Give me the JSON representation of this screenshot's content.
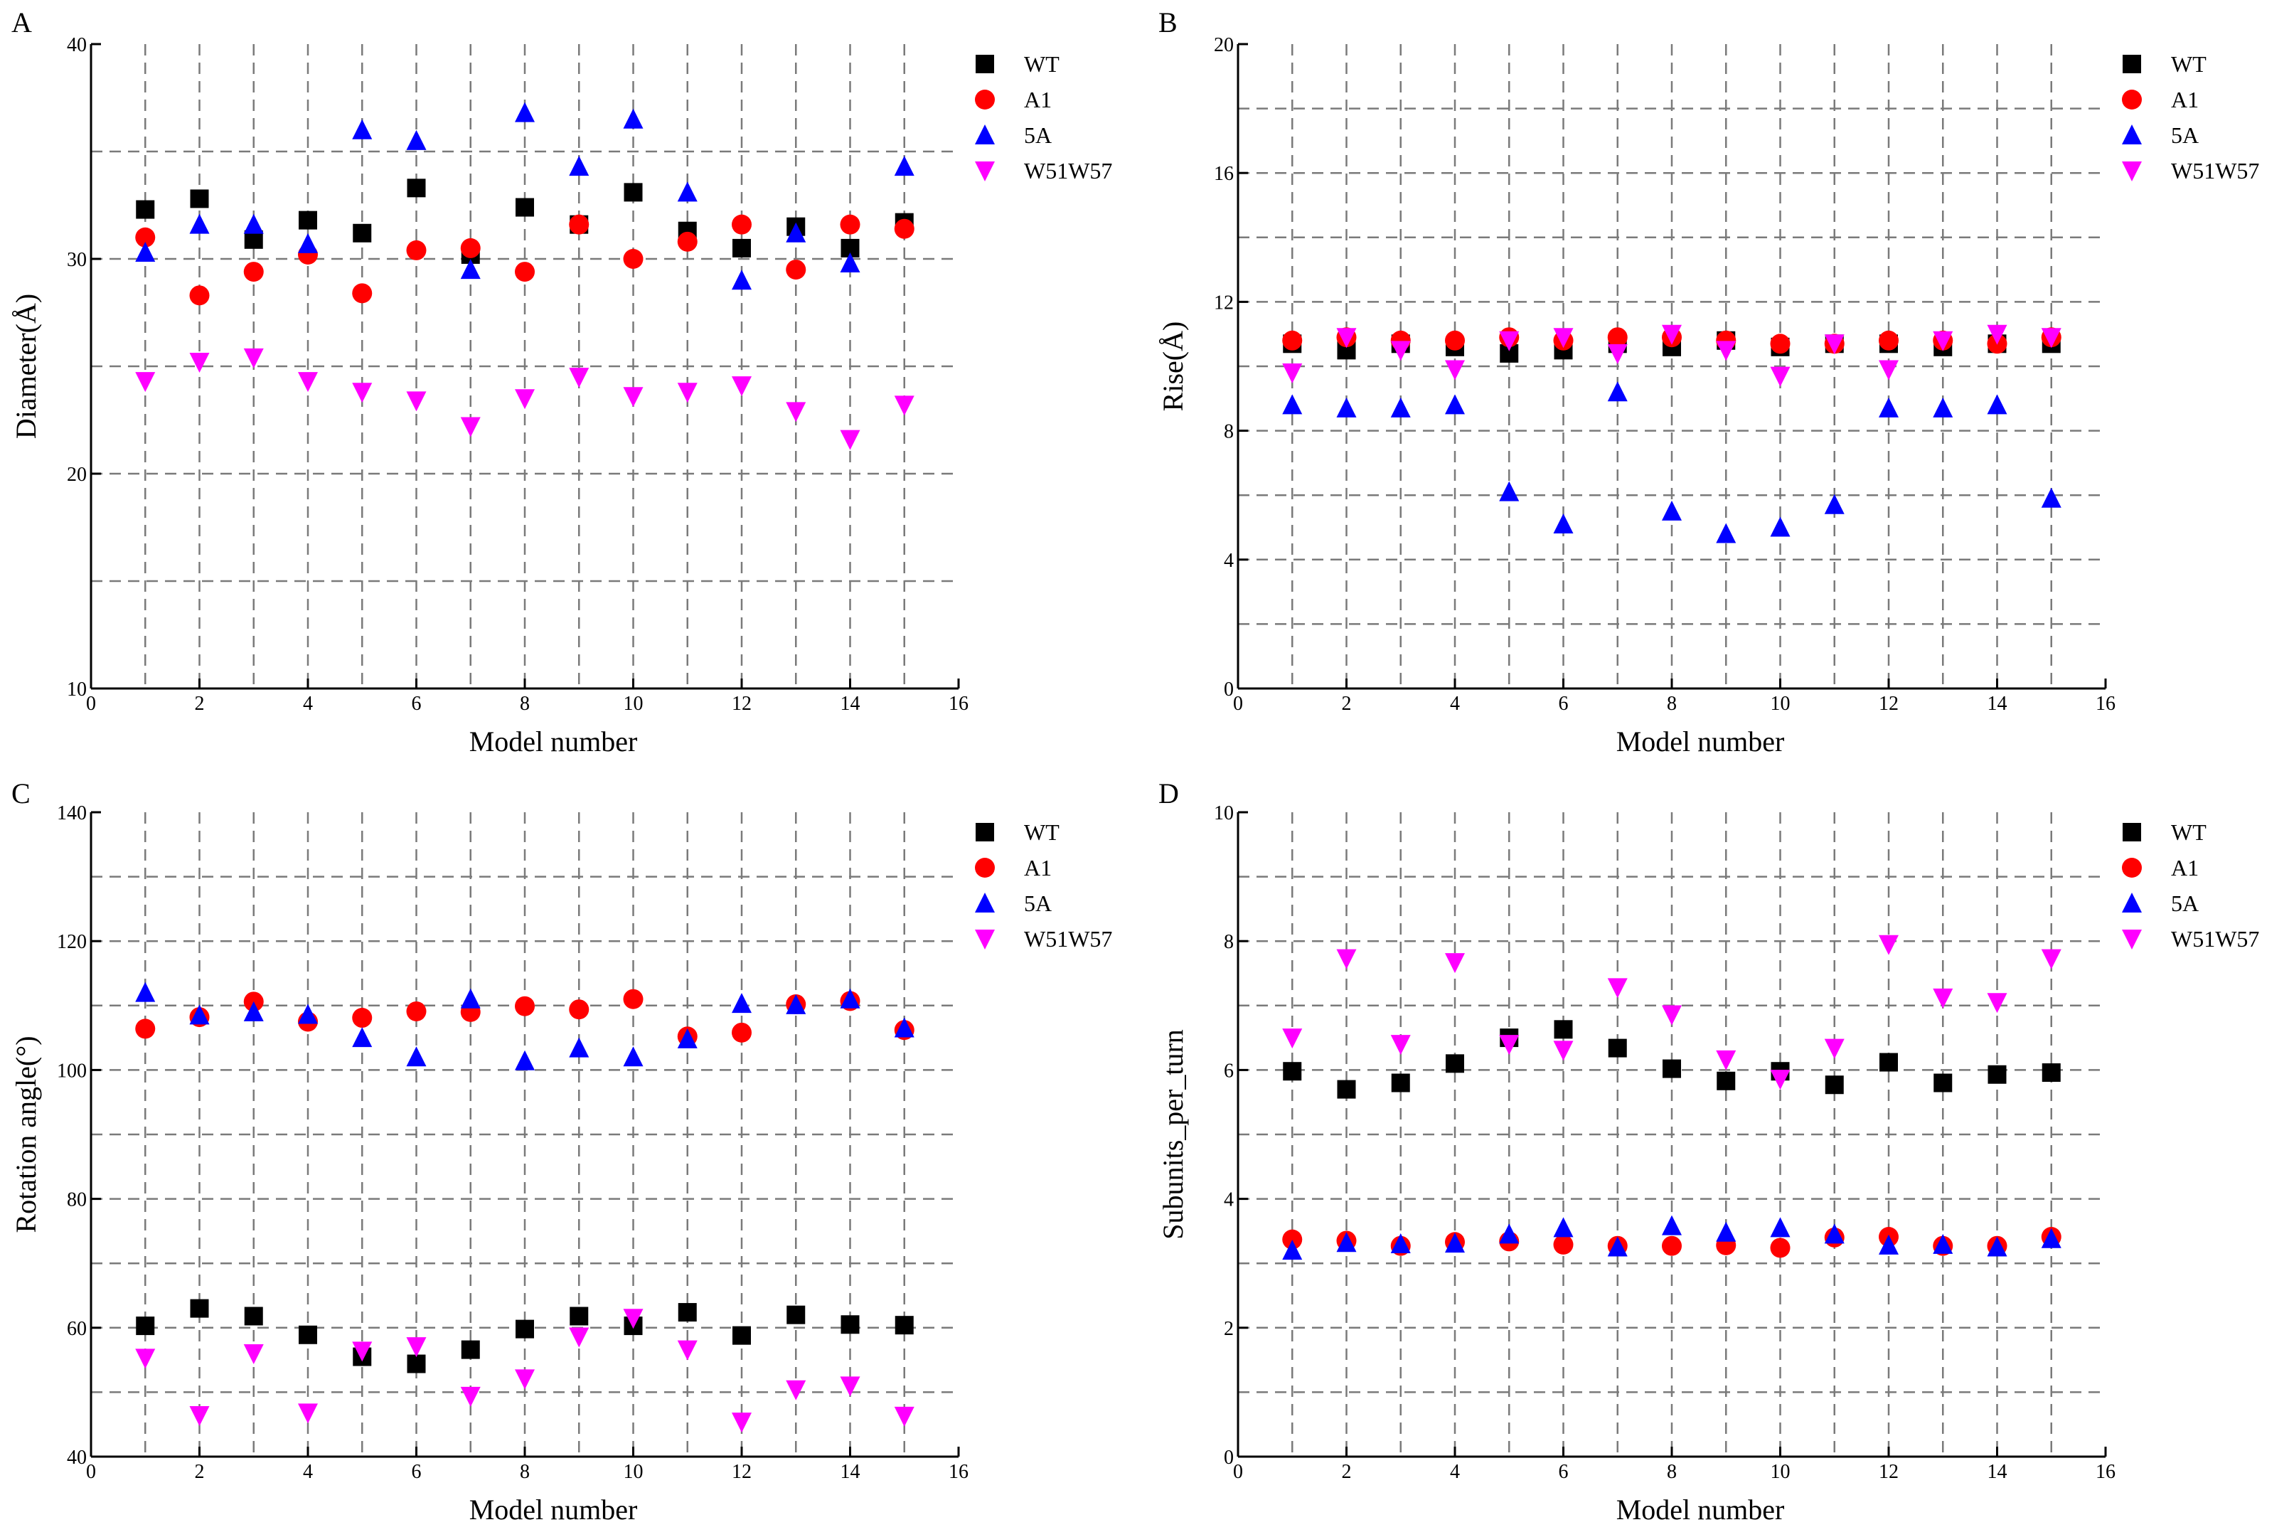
{
  "figure": {
    "legend_labels": [
      "WT",
      "A1",
      "5A",
      "W51W57"
    ],
    "series_styles": [
      {
        "name": "WT",
        "marker": "square",
        "color": "#000000"
      },
      {
        "name": "A1",
        "marker": "circle",
        "color": "#ff0000"
      },
      {
        "name": "5A",
        "marker": "triangle-up",
        "color": "#0000ff"
      },
      {
        "name": "W51W57",
        "marker": "triangle-down",
        "color": "#ff00ff"
      }
    ]
  },
  "chart_data": [
    {
      "panel": "A",
      "type": "scatter",
      "title": "",
      "xlabel": "Model number",
      "ylabel": "Diameter(Å)",
      "xlim": [
        0,
        16
      ],
      "ylim": [
        10,
        40
      ],
      "xticks": [
        0,
        2,
        4,
        6,
        8,
        10,
        12,
        14,
        16
      ],
      "yticks": [
        10,
        20,
        30,
        40
      ],
      "grid": true,
      "legend": "top-right",
      "x": [
        1,
        2,
        3,
        4,
        5,
        6,
        7,
        8,
        9,
        10,
        11,
        12,
        13,
        14,
        15
      ],
      "series": [
        {
          "name": "WT",
          "values": [
            32.3,
            32.8,
            30.9,
            31.8,
            31.2,
            33.3,
            30.2,
            32.4,
            31.6,
            33.1,
            31.3,
            30.5,
            31.5,
            30.5,
            31.7
          ]
        },
        {
          "name": "A1",
          "values": [
            31.0,
            28.3,
            29.4,
            30.2,
            28.4,
            30.4,
            30.5,
            29.4,
            31.6,
            30.0,
            30.8,
            31.6,
            29.5,
            31.6,
            31.4
          ]
        },
        {
          "name": "5A",
          "values": [
            30.3,
            31.6,
            31.6,
            30.7,
            36.0,
            35.5,
            29.5,
            36.8,
            34.3,
            36.5,
            33.1,
            29.0,
            31.2,
            29.8,
            34.3
          ]
        },
        {
          "name": "W51W57",
          "values": [
            24.3,
            25.2,
            25.4,
            24.3,
            23.8,
            23.4,
            22.2,
            23.5,
            24.5,
            23.6,
            23.8,
            24.1,
            22.9,
            21.6,
            23.2
          ]
        }
      ]
    },
    {
      "panel": "B",
      "type": "scatter",
      "title": "",
      "xlabel": "Model number",
      "ylabel": "Rise(Å)",
      "xlim": [
        0,
        16
      ],
      "ylim": [
        0,
        20
      ],
      "xticks": [
        0,
        2,
        4,
        6,
        8,
        10,
        12,
        14,
        16
      ],
      "yticks": [
        0,
        4,
        8,
        12,
        16,
        20
      ],
      "grid": true,
      "legend": "top-right",
      "x": [
        1,
        2,
        3,
        4,
        5,
        6,
        7,
        8,
        9,
        10,
        11,
        12,
        13,
        14,
        15
      ],
      "series": [
        {
          "name": "WT",
          "values": [
            10.7,
            10.5,
            10.7,
            10.6,
            10.4,
            10.5,
            10.7,
            10.6,
            10.8,
            10.6,
            10.7,
            10.7,
            10.6,
            10.7,
            10.7
          ]
        },
        {
          "name": "A1",
          "values": [
            10.8,
            10.9,
            10.8,
            10.8,
            10.9,
            10.8,
            10.9,
            10.9,
            10.8,
            10.7,
            10.7,
            10.8,
            10.8,
            10.7,
            10.9
          ]
        },
        {
          "name": "5A",
          "values": [
            8.8,
            8.7,
            8.7,
            8.8,
            6.1,
            5.1,
            9.2,
            5.5,
            4.8,
            5.0,
            5.7,
            8.7,
            8.7,
            8.8,
            5.9
          ]
        },
        {
          "name": "W51W57",
          "values": [
            9.8,
            10.9,
            10.5,
            9.9,
            10.8,
            10.9,
            10.4,
            11.0,
            10.5,
            9.7,
            10.7,
            9.9,
            10.8,
            11.0,
            10.9
          ]
        }
      ]
    },
    {
      "panel": "C",
      "type": "scatter",
      "title": "",
      "xlabel": "Model number",
      "ylabel": "Rotation angle(°)",
      "xlim": [
        0,
        16
      ],
      "ylim": [
        40,
        140
      ],
      "xticks": [
        0,
        2,
        4,
        6,
        8,
        10,
        12,
        14,
        16
      ],
      "yticks": [
        40,
        60,
        80,
        100,
        120,
        140
      ],
      "grid": true,
      "legend": "top-right",
      "x": [
        1,
        2,
        3,
        4,
        5,
        6,
        7,
        8,
        9,
        10,
        11,
        12,
        13,
        14,
        15
      ],
      "series": [
        {
          "name": "WT",
          "values": [
            60.3,
            63.0,
            61.8,
            58.9,
            55.5,
            54.4,
            56.6,
            59.8,
            61.8,
            60.3,
            62.4,
            58.8,
            62.0,
            60.5,
            60.4
          ]
        },
        {
          "name": "A1",
          "values": [
            106.4,
            108.2,
            110.6,
            107.5,
            108.1,
            109.1,
            109.0,
            109.9,
            109.4,
            111.0,
            105.2,
            105.8,
            110.2,
            110.7,
            106.2
          ]
        },
        {
          "name": "5A",
          "values": [
            112.0,
            108.5,
            109.0,
            108.6,
            105.0,
            102.0,
            111.0,
            101.4,
            103.4,
            102.0,
            104.8,
            110.3,
            110.1,
            111.0,
            106.5
          ]
        },
        {
          "name": "W51W57",
          "values": [
            55.3,
            46.4,
            56.0,
            46.8,
            56.4,
            57.1,
            49.4,
            52.1,
            58.6,
            61.5,
            56.6,
            45.4,
            50.4,
            51.0,
            46.3
          ]
        }
      ]
    },
    {
      "panel": "D",
      "type": "scatter",
      "title": "",
      "xlabel": "Model number",
      "ylabel": "Subunits_per_turn",
      "xlim": [
        0,
        16
      ],
      "ylim": [
        0,
        10
      ],
      "xticks": [
        0,
        2,
        4,
        6,
        8,
        10,
        12,
        14,
        16
      ],
      "yticks": [
        0,
        2,
        4,
        6,
        8,
        10
      ],
      "grid": true,
      "legend": "top-right",
      "x": [
        1,
        2,
        3,
        4,
        5,
        6,
        7,
        8,
        9,
        10,
        11,
        12,
        13,
        14,
        15
      ],
      "series": [
        {
          "name": "WT",
          "values": [
            5.98,
            5.7,
            5.8,
            6.1,
            6.5,
            6.63,
            6.34,
            6.02,
            5.83,
            5.98,
            5.77,
            6.12,
            5.8,
            5.93,
            5.96
          ]
        },
        {
          "name": "A1",
          "values": [
            3.37,
            3.35,
            3.27,
            3.33,
            3.34,
            3.29,
            3.27,
            3.27,
            3.28,
            3.24,
            3.4,
            3.41,
            3.27,
            3.27,
            3.41
          ]
        },
        {
          "name": "5A",
          "values": [
            3.2,
            3.32,
            3.3,
            3.31,
            3.45,
            3.55,
            3.25,
            3.58,
            3.48,
            3.55,
            3.45,
            3.28,
            3.29,
            3.25,
            3.38
          ]
        },
        {
          "name": "W51W57",
          "values": [
            6.5,
            7.73,
            6.4,
            7.67,
            6.4,
            6.31,
            7.28,
            6.86,
            6.16,
            5.86,
            6.34,
            7.95,
            7.12,
            7.05,
            7.73
          ]
        }
      ]
    }
  ]
}
